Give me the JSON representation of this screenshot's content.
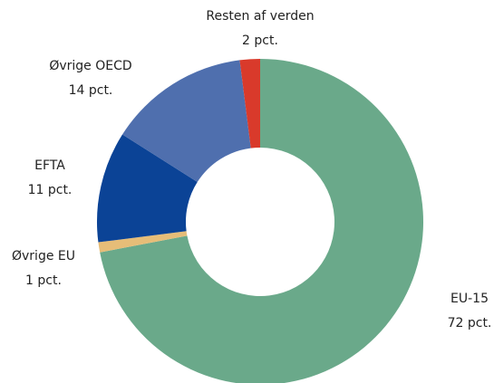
{
  "chart_data": {
    "type": "donut",
    "categories": [
      "EU-15",
      "Øvrige EU",
      "EFTA",
      "Øvrige OECD",
      "Resten af verden"
    ],
    "values": [
      72,
      1,
      11,
      14,
      2
    ],
    "value_labels": [
      "72 pct.",
      "1 pct.",
      "11 pct.",
      "14 pct.",
      "2 pct."
    ],
    "colors": [
      "#6aa98a",
      "#e6bd78",
      "#0b4396",
      "#4f6fae",
      "#d93a2b"
    ]
  }
}
